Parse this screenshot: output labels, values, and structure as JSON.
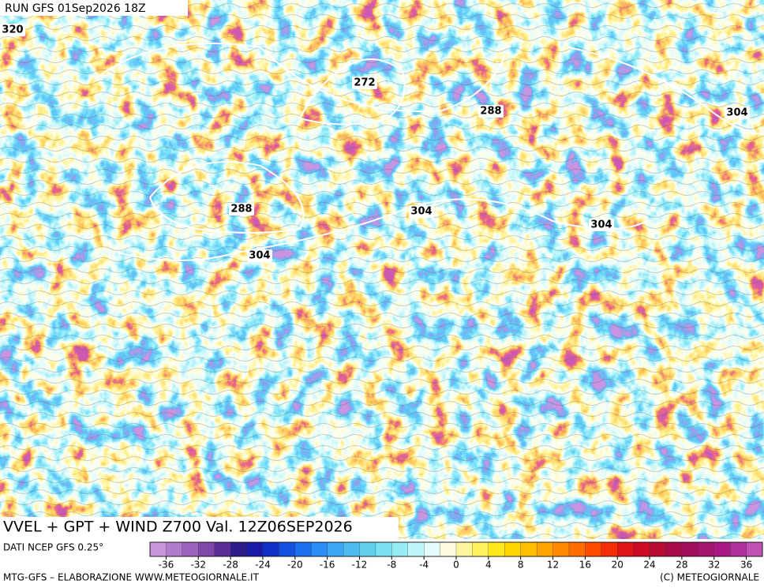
{
  "header": {
    "run": "RUN GFS 01Sep2026 18Z"
  },
  "contour_labels": [
    320,
    272,
    288,
    304,
    288,
    304,
    304,
    304
  ],
  "title": "VVEL + GPT + WIND Z700 Val. 12Z06SEP2026",
  "source": "DATI NCEP GFS 0.25°",
  "colorbar": {
    "lim": [
      -38,
      38
    ],
    "ticks": [
      -36,
      -32,
      -28,
      -24,
      -20,
      -16,
      -12,
      -8,
      -4,
      0,
      4,
      8,
      12,
      16,
      20,
      24,
      28,
      32,
      36
    ],
    "colors": [
      "#c896d8",
      "#b07ccc",
      "#9a62bc",
      "#8048a8",
      "#5a2c96",
      "#2c1c8c",
      "#1a1aa8",
      "#1030c8",
      "#1450e0",
      "#1c6ef0",
      "#2a8cf4",
      "#3aa6f4",
      "#4cbcf0",
      "#60d0ee",
      "#78e0f0",
      "#98ecf4",
      "#bef6fa",
      "#e4fcfc",
      "#fffce0",
      "#fff6a0",
      "#fff060",
      "#ffe81c",
      "#ffd400",
      "#ffbe00",
      "#ffa400",
      "#ff8a00",
      "#ff6c00",
      "#ff4c00",
      "#f42c08",
      "#e01414",
      "#cc0c20",
      "#b80c34",
      "#a80c48",
      "#a0105c",
      "#a41470",
      "#a81884",
      "#b0309c",
      "#c050b4"
    ]
  },
  "footer": {
    "left": "MTG-GFS – ELABORAZIONE WWW.METEOGIORNALE.IT",
    "right": "(C) METEOGIORNALE"
  }
}
